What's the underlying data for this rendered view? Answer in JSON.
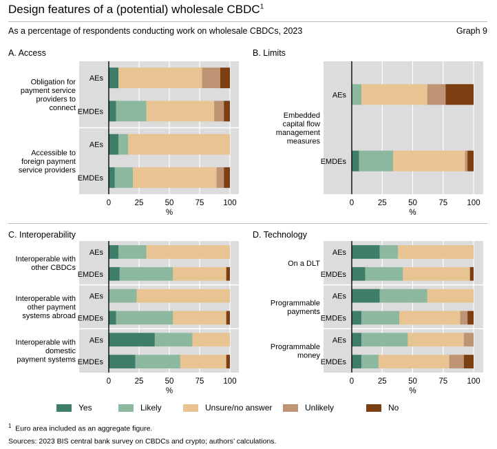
{
  "header": {
    "title": "Design features of a (potential) wholesale CBDC",
    "title_note": "1",
    "subtitle": "As a percentage of respondents conducting work on wholesale CBDCs, 2023",
    "graph_number": "Graph 9"
  },
  "legend": [
    {
      "label": "Yes",
      "color": "#3e7d68"
    },
    {
      "label": "Likely",
      "color": "#8db8a0"
    },
    {
      "label": "Unsure/no answer",
      "color": "#e8c492"
    },
    {
      "label": "Unlikely",
      "color": "#bf9474"
    },
    {
      "label": "No",
      "color": "#7b3f12"
    }
  ],
  "footnote": {
    "marker": "1",
    "text": "Euro area included as an aggregate figure."
  },
  "sources": "Sources: 2023 BIS central bank survey on CBDCs and crypto; authors’ calculations.",
  "chart_data": [
    {
      "id": "A",
      "type": "bar",
      "orientation": "horizontal",
      "stacked": true,
      "title": "A. Access",
      "xlabel": "%",
      "xlim": [
        0,
        100
      ],
      "xticks": [
        0,
        25,
        50,
        75,
        100
      ],
      "series_names": [
        "Yes",
        "Likely",
        "Unsure/no answer",
        "Unlikely",
        "No"
      ],
      "groups": [
        {
          "label": "Obligation for payment service providers to connect",
          "label_lines": [
            "Obligation for",
            "payment service",
            "providers to",
            "connect"
          ],
          "bars": [
            {
              "category": "AEs",
              "values": [
                8,
                0,
                69,
                15,
                8
              ]
            },
            {
              "category": "EMDEs",
              "values": [
                6,
                25,
                56,
                8,
                5
              ]
            }
          ]
        },
        {
          "label": "Accessible to foreign payment service providers",
          "label_lines": [
            "Accessible to",
            "foreign payment",
            "service providers"
          ],
          "bars": [
            {
              "category": "AEs",
              "values": [
                8,
                8,
                84,
                0,
                0
              ]
            },
            {
              "category": "EMDEs",
              "values": [
                5,
                15,
                69,
                6,
                5
              ]
            }
          ]
        }
      ]
    },
    {
      "id": "B",
      "type": "bar",
      "orientation": "horizontal",
      "stacked": true,
      "title": "B. Limits",
      "xlabel": "%",
      "xlim": [
        0,
        100
      ],
      "xticks": [
        0,
        25,
        50,
        75,
        100
      ],
      "series_names": [
        "Yes",
        "Likely",
        "Unsure/no answer",
        "Unlikely",
        "No"
      ],
      "groups": [
        {
          "label": "Embedded capital flow management measures",
          "label_lines": [
            "Embedded",
            "capital flow",
            "management",
            "measures"
          ],
          "bars": [
            {
              "category": "AEs",
              "values": [
                0,
                8,
                54,
                15,
                23
              ]
            },
            {
              "category": "EMDEs",
              "values": [
                6,
                28,
                59,
                2,
                5
              ]
            }
          ]
        }
      ]
    },
    {
      "id": "C",
      "type": "bar",
      "orientation": "horizontal",
      "stacked": true,
      "title": "C. Interoperability",
      "xlabel": "%",
      "xlim": [
        0,
        100
      ],
      "xticks": [
        0,
        25,
        50,
        75,
        100
      ],
      "series_names": [
        "Yes",
        "Likely",
        "Unsure/no answer",
        "Unlikely",
        "No"
      ],
      "groups": [
        {
          "label": "Interoperable with other CBDCs",
          "label_lines": [
            "Interoperable with",
            "other CBDCs"
          ],
          "bars": [
            {
              "category": "AEs",
              "values": [
                8,
                23,
                69,
                0,
                0
              ]
            },
            {
              "category": "EMDEs",
              "values": [
                9,
                44,
                44,
                0,
                3
              ]
            }
          ]
        },
        {
          "label": "Interoperable with other payment systems abroad",
          "label_lines": [
            "Interoperable with",
            "other payment",
            "systems abroad"
          ],
          "bars": [
            {
              "category": "AEs",
              "values": [
                0,
                23,
                77,
                0,
                0
              ]
            },
            {
              "category": "EMDEs",
              "values": [
                6,
                47,
                44,
                0,
                3
              ]
            }
          ]
        },
        {
          "label": "Interoperable with domestic payment systems",
          "label_lines": [
            "Interoperable with",
            "domestic",
            "payment systems"
          ],
          "bars": [
            {
              "category": "AEs",
              "values": [
                38,
                31,
                31,
                0,
                0
              ]
            },
            {
              "category": "EMDEs",
              "values": [
                22,
                37,
                38,
                0,
                3
              ]
            }
          ]
        }
      ]
    },
    {
      "id": "D",
      "type": "bar",
      "orientation": "horizontal",
      "stacked": true,
      "title": "D. Technology",
      "xlabel": "%",
      "xlim": [
        0,
        100
      ],
      "xticks": [
        0,
        25,
        50,
        75,
        100
      ],
      "series_names": [
        "Yes",
        "Likely",
        "Unsure/no answer",
        "Unlikely",
        "No"
      ],
      "groups": [
        {
          "label": "On a DLT",
          "label_lines": [
            "On a DLT"
          ],
          "bars": [
            {
              "category": "AEs",
              "values": [
                23,
                15,
                62,
                0,
                0
              ]
            },
            {
              "category": "EMDEs",
              "values": [
                11,
                31,
                55,
                0,
                3
              ]
            }
          ]
        },
        {
          "label": "Programmable payments",
          "label_lines": [
            "Programmable",
            "payments"
          ],
          "bars": [
            {
              "category": "AEs",
              "values": [
                23,
                39,
                38,
                0,
                0
              ]
            },
            {
              "category": "EMDEs",
              "values": [
                8,
                31,
                50,
                6,
                5
              ]
            }
          ]
        },
        {
          "label": "Programmable money",
          "label_lines": [
            "Programmable",
            "money"
          ],
          "bars": [
            {
              "category": "AEs",
              "values": [
                8,
                38,
                46,
                8,
                0
              ]
            },
            {
              "category": "EMDEs",
              "values": [
                8,
                14,
                58,
                12,
                8
              ]
            }
          ]
        }
      ]
    }
  ]
}
